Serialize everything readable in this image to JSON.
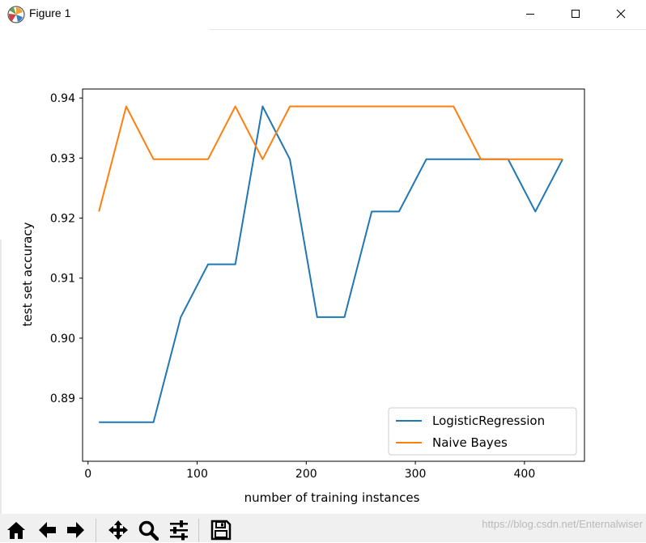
{
  "window": {
    "title": "Figure 1",
    "icon": "matplotlib-logo-icon",
    "controls": [
      "minimize-icon",
      "maximize-icon",
      "close-icon"
    ]
  },
  "chart_data": {
    "type": "line",
    "title": "",
    "xlabel": "number of training instances",
    "ylabel": "test set accuracy",
    "xlim": [
      -5,
      455
    ],
    "ylim": [
      0.8795,
      0.9415
    ],
    "xticks": [
      0,
      100,
      200,
      300,
      400
    ],
    "xtick_labels": [
      "0",
      "100",
      "200",
      "300",
      "400"
    ],
    "yticks": [
      0.89,
      0.9,
      0.91,
      0.92,
      0.93,
      0.94
    ],
    "ytick_labels": [
      "0.89",
      "0.90",
      "0.91",
      "0.92",
      "0.93",
      "0.94"
    ],
    "grid": false,
    "legend_position": "lower-right",
    "x": [
      10,
      35,
      60,
      85,
      110,
      135,
      160,
      185,
      210,
      235,
      260,
      285,
      310,
      335,
      360,
      385,
      410,
      435
    ],
    "series": [
      {
        "name": "LogisticRegression",
        "color": "#1f77b4",
        "values": [
          0.886,
          0.886,
          0.886,
          0.9035,
          0.9123,
          0.9123,
          0.9386,
          0.9298,
          0.9035,
          0.9035,
          0.9211,
          0.9211,
          0.9298,
          0.9298,
          0.9298,
          0.9298,
          0.9211,
          0.9298
        ]
      },
      {
        "name": "Naive Bayes",
        "color": "#ff7f0e",
        "values": [
          0.9211,
          0.9386,
          0.9298,
          0.9298,
          0.9298,
          0.9386,
          0.9298,
          0.9386,
          0.9386,
          0.9386,
          0.9386,
          0.9386,
          0.9386,
          0.9386,
          0.9298,
          0.9298,
          0.9298,
          0.9298
        ]
      }
    ]
  },
  "toolbar": {
    "buttons": [
      {
        "name": "home-button",
        "icon": "home-icon"
      },
      {
        "name": "back-button",
        "icon": "arrow-left-icon"
      },
      {
        "name": "forward-button",
        "icon": "arrow-right-icon"
      },
      {
        "name": "pan-button",
        "icon": "move-arrows-icon"
      },
      {
        "name": "zoom-button",
        "icon": "magnifier-icon"
      },
      {
        "name": "configure-subplots-button",
        "icon": "sliders-icon"
      },
      {
        "name": "save-button",
        "icon": "floppy-disk-icon"
      }
    ]
  },
  "watermark": "https://blog.csdn.net/Enternalwiser"
}
